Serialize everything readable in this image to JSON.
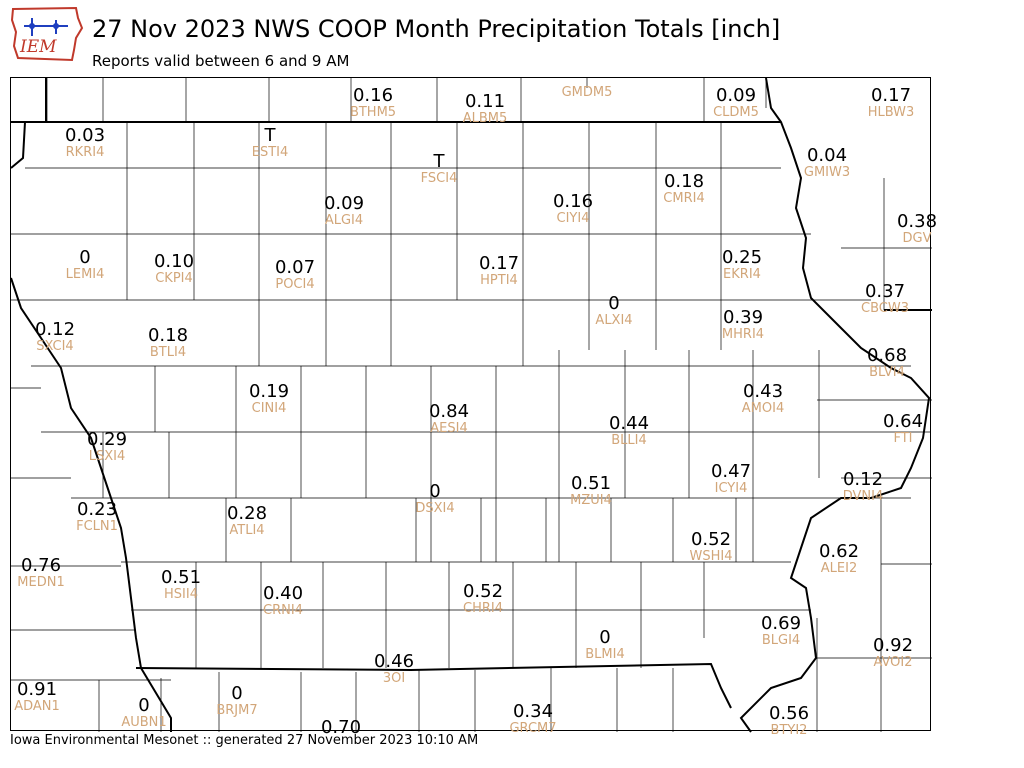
{
  "logo": {
    "text": "IEM"
  },
  "header": {
    "title": "27 Nov 2023 NWS COOP Month Precipitation Totals [inch]",
    "subtitle": "Reports valid between 6 and 9 AM"
  },
  "footer": {
    "text": "Iowa Environmental Mesonet :: generated 27 November 2023 10:10 AM"
  },
  "colors": {
    "value": "#000000",
    "station_id": "#d2a679",
    "boundary": "#000000"
  },
  "stations": [
    {
      "v": "0.16",
      "id": "BTHM5"
    },
    {
      "v": "0.11",
      "id": "ALBM5"
    },
    {
      "v": "",
      "id": "GMDM5"
    },
    {
      "v": "0.09",
      "id": "CLDM5"
    },
    {
      "v": "0.17",
      "id": "HLBW3"
    },
    {
      "v": "0.03",
      "id": "RKRI4"
    },
    {
      "v": "T",
      "id": "ESTI4"
    },
    {
      "v": "T",
      "id": "FSCI4"
    },
    {
      "v": "0.04",
      "id": "GMIW3"
    },
    {
      "v": "0.09",
      "id": "ALGI4"
    },
    {
      "v": "0.16",
      "id": "CIYI4"
    },
    {
      "v": "0.18",
      "id": "CMRI4"
    },
    {
      "v": "0.38",
      "id": "DGV"
    },
    {
      "v": "0",
      "id": "LEMI4"
    },
    {
      "v": "0.10",
      "id": "CKPI4"
    },
    {
      "v": "0.07",
      "id": "POCI4"
    },
    {
      "v": "0.17",
      "id": "HPTI4"
    },
    {
      "v": "0.25",
      "id": "EKRI4"
    },
    {
      "v": "0.37",
      "id": "CBCW3"
    },
    {
      "v": "0",
      "id": "ALXI4"
    },
    {
      "v": "0.12",
      "id": "SXCI4"
    },
    {
      "v": "0.18",
      "id": "BTLI4"
    },
    {
      "v": "0.39",
      "id": "MHRI4"
    },
    {
      "v": "0.68",
      "id": "BLVI4"
    },
    {
      "v": "0.19",
      "id": "CINI4"
    },
    {
      "v": "0.43",
      "id": "AMOI4"
    },
    {
      "v": "0.84",
      "id": "AESI4"
    },
    {
      "v": "0.64",
      "id": "FTI"
    },
    {
      "v": "0.44",
      "id": "BLLI4"
    },
    {
      "v": "0.29",
      "id": "LSXI4"
    },
    {
      "v": "0.47",
      "id": "ICYI4"
    },
    {
      "v": "0",
      "id": "DSXI4"
    },
    {
      "v": "0.51",
      "id": "MZUI4"
    },
    {
      "v": "0.12",
      "id": "DVNI4"
    },
    {
      "v": "0.23",
      "id": "FCLN1"
    },
    {
      "v": "0.28",
      "id": "ATLI4"
    },
    {
      "v": "0.52",
      "id": "WSHI4"
    },
    {
      "v": "0.62",
      "id": "ALEI2"
    },
    {
      "v": "0.76",
      "id": "MEDN1"
    },
    {
      "v": "0.51",
      "id": "HSII4"
    },
    {
      "v": "0.40",
      "id": "CRNI4"
    },
    {
      "v": "0.52",
      "id": "CHRI4"
    },
    {
      "v": "0",
      "id": "BLMI4"
    },
    {
      "v": "0.69",
      "id": "BLGI4"
    },
    {
      "v": "0.92",
      "id": "AVOI2"
    },
    {
      "v": "0.46",
      "id": "3OI"
    },
    {
      "v": "0.91",
      "id": "ADAN1"
    },
    {
      "v": "0",
      "id": "AUBN1"
    },
    {
      "v": "0",
      "id": "BRJM7"
    },
    {
      "v": "0.34",
      "id": "GRCM7"
    },
    {
      "v": "0.70",
      "id": ""
    },
    {
      "v": "0.56",
      "id": "BTYI2"
    }
  ]
}
